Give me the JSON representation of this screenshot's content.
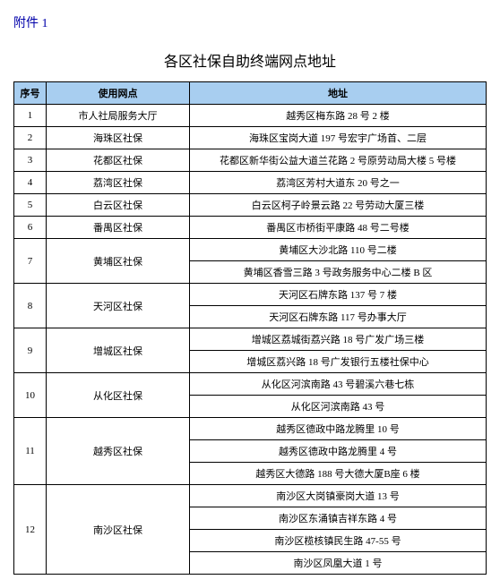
{
  "attachment_label": "附件 1",
  "title": "各区社保自助终端网点地址",
  "table": {
    "headers": {
      "seq": "序号",
      "location": "使用网点",
      "address": "地址"
    },
    "header_bg": "#a8cef0",
    "border_color": "#000000",
    "rows": [
      {
        "seq": "1",
        "location": "市人社局服务大厅",
        "addresses": [
          "越秀区梅东路 28 号 2 楼"
        ]
      },
      {
        "seq": "2",
        "location": "海珠区社保",
        "addresses": [
          "海珠区宝岗大道 197 号宏宇广场首、二层"
        ]
      },
      {
        "seq": "3",
        "location": "花都区社保",
        "addresses": [
          "花都区新华街公益大道兰花路 2 号原劳动局大楼 5 号楼"
        ]
      },
      {
        "seq": "4",
        "location": "荔湾区社保",
        "addresses": [
          "荔湾区芳村大道东 20 号之一"
        ]
      },
      {
        "seq": "5",
        "location": "白云区社保",
        "addresses": [
          "白云区柯子岭景云路 22 号劳动大厦三楼"
        ]
      },
      {
        "seq": "6",
        "location": "番禺区社保",
        "addresses": [
          "番禺区市桥街平康路 48 号二号楼"
        ]
      },
      {
        "seq": "7",
        "location": "黄埔区社保",
        "addresses": [
          "黄埔区大沙北路 110 号二楼",
          "黄埔区香雪三路 3 号政务服务中心二楼 B 区"
        ]
      },
      {
        "seq": "8",
        "location": "天河区社保",
        "addresses": [
          "天河区石牌东路 137 号 7 楼",
          "天河区石牌东路 117 号办事大厅"
        ]
      },
      {
        "seq": "9",
        "location": "增城区社保",
        "addresses": [
          "增城区荔城街荔兴路 18 号广发广场三楼",
          "增城区荔兴路 18 号广发银行五楼社保中心"
        ]
      },
      {
        "seq": "10",
        "location": "从化区社保",
        "addresses": [
          "从化区河滨南路 43 号碧溪六巷七栋",
          "从化区河滨南路 43 号"
        ]
      },
      {
        "seq": "11",
        "location": "越秀区社保",
        "addresses": [
          "越秀区德政中路龙腾里 10 号",
          "越秀区德政中路龙腾里 4 号",
          "越秀区大德路 188 号大德大厦B座 6 楼"
        ]
      },
      {
        "seq": "12",
        "location": "南沙区社保",
        "addresses": [
          "南沙区大岗镇豪岗大道 13 号",
          "南沙区东涌镇吉祥东路 4 号",
          "南沙区榄核镇民生路 47-55 号",
          "南沙区凤凰大道 1 号"
        ]
      }
    ]
  }
}
